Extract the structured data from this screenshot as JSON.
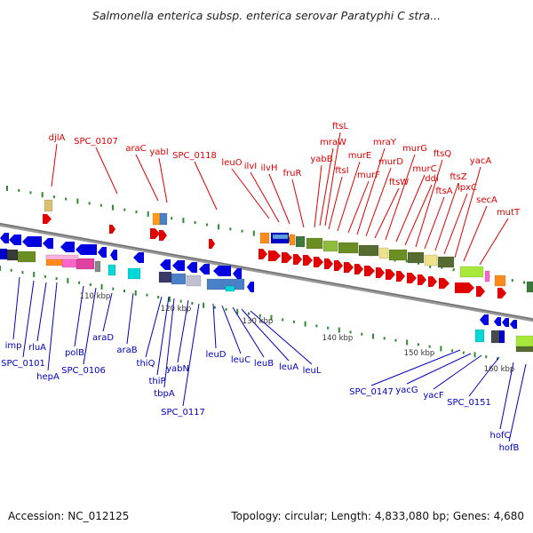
{
  "title": "Salmonella enterica subsp. enterica serovar Paratyphi C stra...",
  "footer": {
    "accession": "Accession: NC_012125",
    "summary": "Topology: circular; Length: 4,833,080 bp; Genes: 4,680"
  },
  "colors": {
    "forward_label": "#e00000",
    "reverse_label": "#0000c0",
    "backbone": "#8c8c8c",
    "gc_tick": "#2e8b2e",
    "tick_label": "#333333"
  },
  "scale_labels": [
    "110 kbp",
    "120 kbp",
    "130 kbp",
    "140 kbp",
    "150 kbp",
    "160 kbp"
  ],
  "forward_genes": [
    "djlA",
    "SPC_0107",
    "araC",
    "yabI",
    "SPC_0118",
    "leuO",
    "ilvI",
    "ilvH",
    "fruR",
    "yabB",
    "ftsL",
    "mraW",
    "ftsI",
    "murE",
    "murF",
    "mraY",
    "murD",
    "ftsW",
    "murG",
    "murC",
    "ddl",
    "ftsQ",
    "ftsA",
    "ftsZ",
    "lpxC",
    "yacA",
    "secA",
    "mutT"
  ],
  "reverse_genes": [
    "imp",
    "SPC_0101",
    "rluA",
    "hepA",
    "polB",
    "SPC_0106",
    "araD",
    "araB",
    "thiQ",
    "thiP",
    "tbpA",
    "yabN",
    "SPC_0117",
    "leuD",
    "leuC",
    "leuB",
    "leuA",
    "leuL",
    "SPC_0147",
    "yacG",
    "yacF",
    "SPC_0151",
    "hofC",
    "hofB"
  ]
}
